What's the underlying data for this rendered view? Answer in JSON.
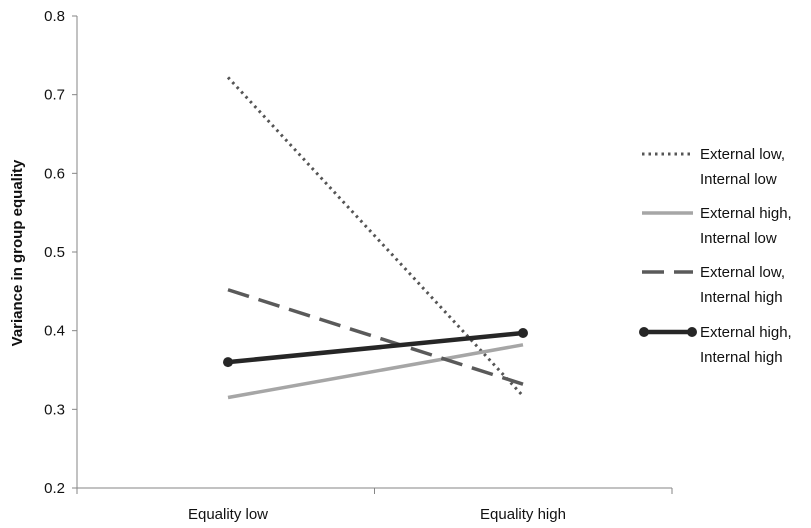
{
  "chart_data": {
    "type": "line",
    "title": "",
    "xlabel": "",
    "ylabel": "Variance in group equality",
    "categories": [
      "Equality low",
      "Equality high"
    ],
    "ylim": [
      0.2,
      0.8
    ],
    "yticks": [
      "0.2",
      "0.3",
      "0.4",
      "0.5",
      "0.6",
      "0.7",
      "0.8"
    ],
    "grid": false,
    "legend_position": "right",
    "series": [
      {
        "name": "External low, Internal low",
        "name_lines": [
          "External low,",
          "Internal low"
        ],
        "values": [
          0.722,
          0.317
        ],
        "style": "dotted",
        "color": "#555555",
        "markers": false
      },
      {
        "name": "External high, Internal low",
        "name_lines": [
          "External high,",
          "Internal low"
        ],
        "values": [
          0.315,
          0.382
        ],
        "style": "solid",
        "color": "#a6a6a6",
        "markers": false
      },
      {
        "name": "External low, Internal high",
        "name_lines": [
          "External low,",
          "Internal high"
        ],
        "values": [
          0.452,
          0.332
        ],
        "style": "dashed",
        "color": "#5a5a5a",
        "markers": false
      },
      {
        "name": "External high, Internal high",
        "name_lines": [
          "External high,",
          "Internal high"
        ],
        "values": [
          0.36,
          0.397
        ],
        "style": "solid-thick",
        "color": "#262626",
        "markers": true
      }
    ]
  }
}
